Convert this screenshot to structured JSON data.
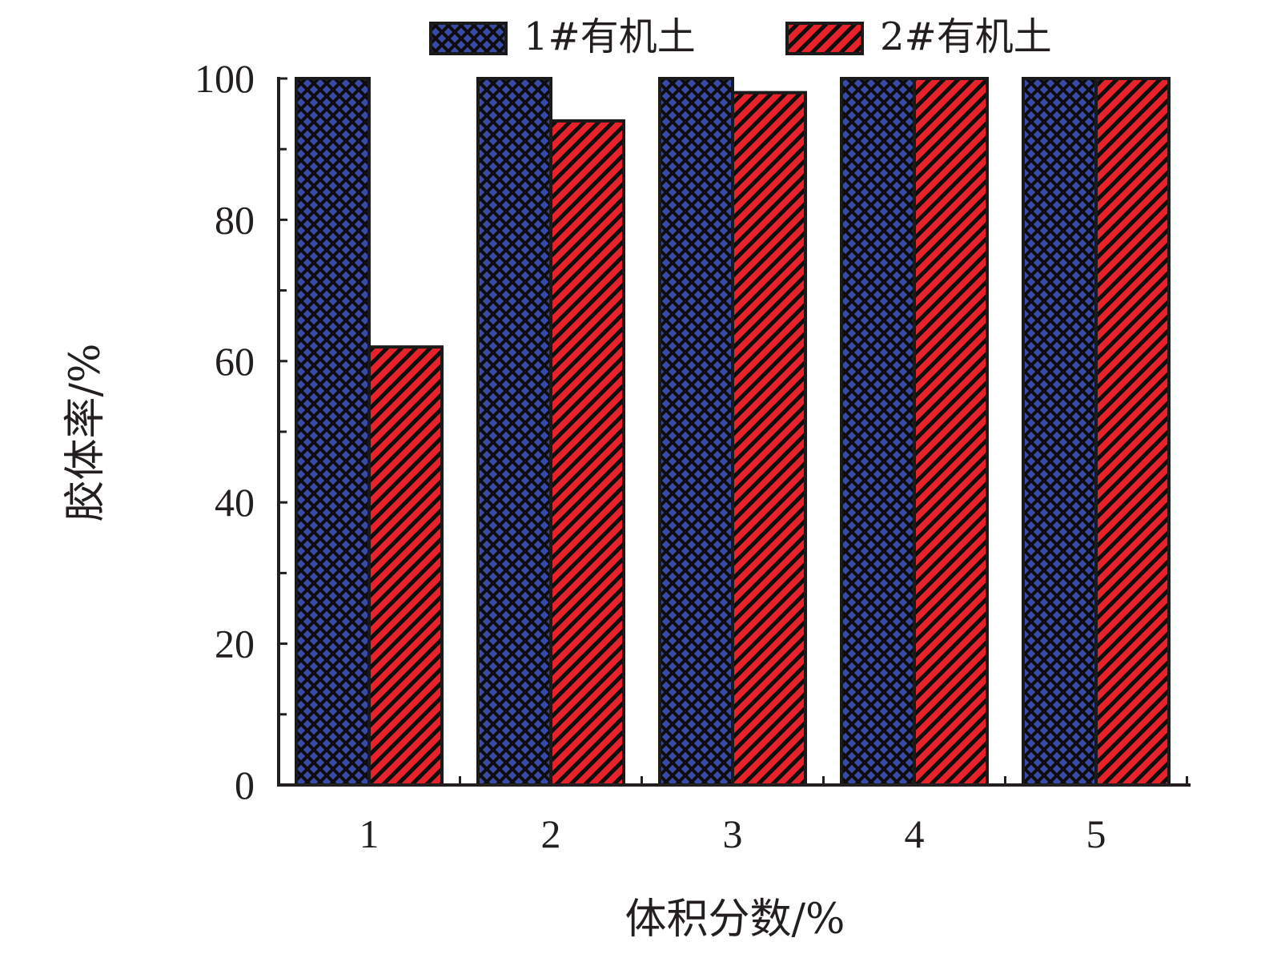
{
  "chart_data": {
    "type": "bar",
    "title": "",
    "xlabel": "体积分数/%",
    "ylabel": "胶体率/%",
    "categories": [
      "1",
      "2",
      "3",
      "4",
      "5"
    ],
    "series": [
      {
        "name": "1#有机土",
        "values": [
          100,
          100,
          100,
          100,
          100
        ],
        "color": "#3a4aa8",
        "pattern": "crosshatch"
      },
      {
        "name": "2#有机土",
        "values": [
          62,
          94,
          98,
          100,
          100
        ],
        "color": "#e8222b",
        "pattern": "diagonal"
      }
    ],
    "ylim": [
      0,
      100
    ],
    "yticks": [
      0,
      20,
      40,
      60,
      80,
      100
    ],
    "legend_position": "top",
    "grid": false
  }
}
